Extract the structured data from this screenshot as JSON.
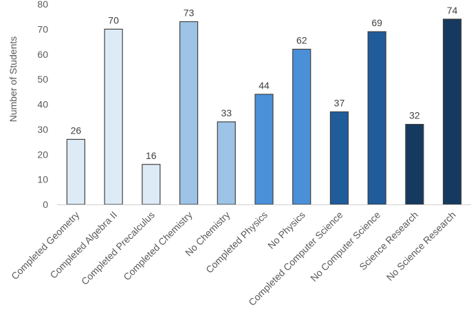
{
  "chart_data": {
    "type": "bar",
    "title": "",
    "xlabel": "",
    "ylabel": "Number of Students",
    "ylim": [
      0,
      80
    ],
    "yticks": [
      0,
      10,
      20,
      30,
      40,
      50,
      60,
      70,
      80
    ],
    "grid": false,
    "legend": "none",
    "categories": [
      "Completed Geometry",
      "Completed Algebra II",
      "Completed Precalculus",
      "Completed Chemistry",
      "No Chemistry",
      "Completed Physics",
      "No Physics",
      "Completed Computer Science",
      "No Computer Science",
      "Science Research",
      "No Science Research"
    ],
    "values": [
      26,
      70,
      16,
      73,
      33,
      44,
      62,
      37,
      69,
      32,
      74
    ],
    "bar_colors": [
      "#DDEBF7",
      "#DDEBF7",
      "#DDEBF7",
      "#9DC3E6",
      "#9DC3E6",
      "#4A90D9",
      "#4A90D9",
      "#1F5C99",
      "#1F5C99",
      "#163A5F",
      "#163A5F"
    ],
    "bar_outline": "#404040"
  }
}
